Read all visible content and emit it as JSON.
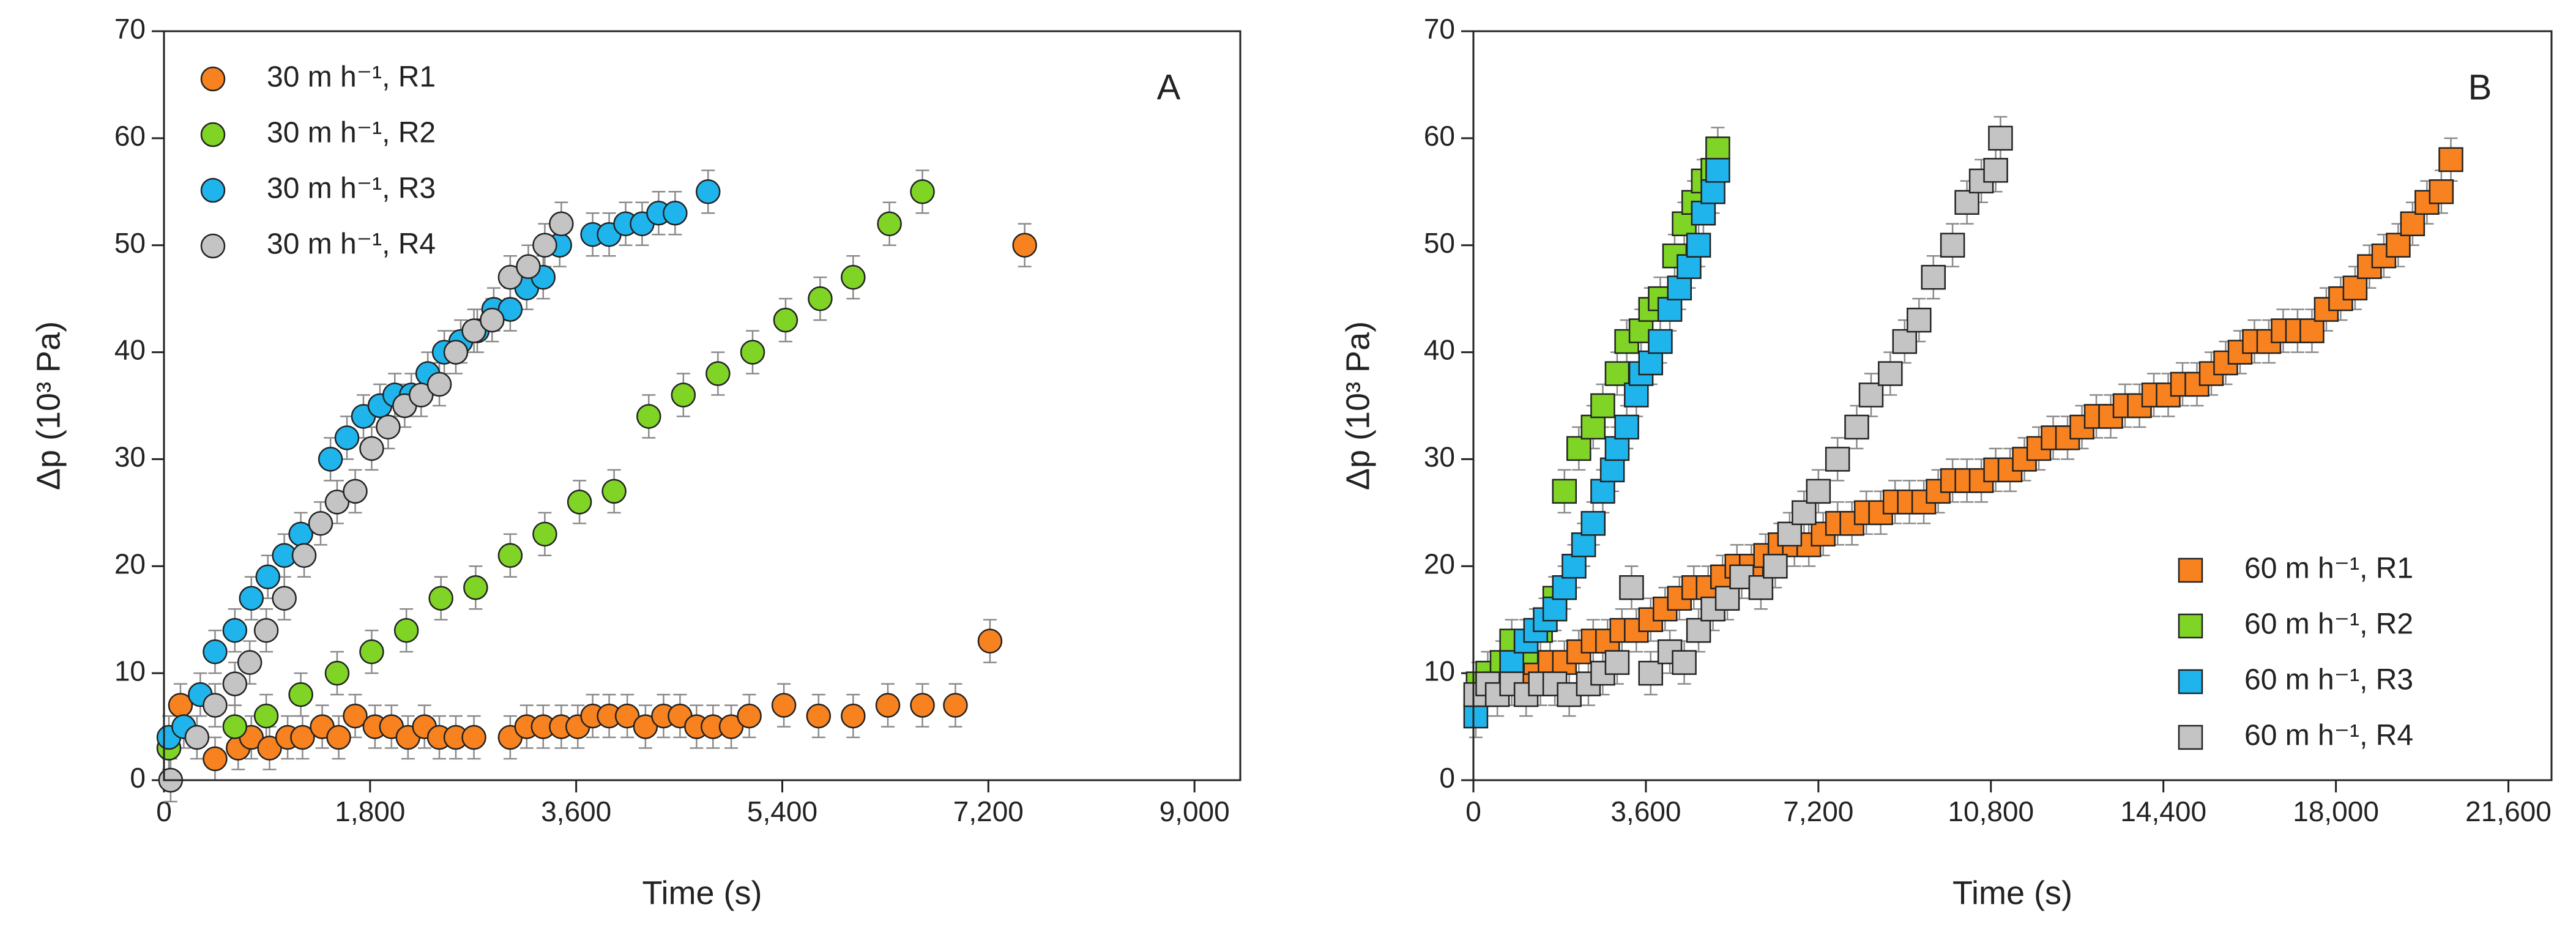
{
  "chart_data": [
    {
      "type": "scatter",
      "marker": "circle",
      "annotation": "A",
      "legend": "upper left",
      "xlabel": "Time (s)",
      "ylabel": "Δp  (10³ Pa)",
      "xlim": [
        0,
        9400
      ],
      "ylim": [
        0,
        70
      ],
      "xticks": [
        0,
        {
          "value": 1800,
          "label": "1,800"
        },
        {
          "value": 3600,
          "label": "3,600"
        },
        {
          "value": 5400,
          "label": "5,400"
        },
        {
          "value": 7200,
          "label": "7,200"
        },
        {
          "value": 9000,
          "label": "9,000"
        }
      ],
      "yticks": [
        0,
        10,
        20,
        30,
        40,
        50,
        60,
        70
      ],
      "series": [
        {
          "name": "30 m h⁻¹, R1",
          "color": "#f7821f",
          "error": 2,
          "x": [
            43,
            144,
            446,
            648,
            763,
            922,
            1080,
            1210,
            1382,
            1526,
            1670,
            1843,
            1987,
            2131,
            2275,
            2405,
            2549,
            2707,
            3024,
            3168,
            3312,
            3470,
            3614,
            3744,
            3888,
            4046,
            4205,
            4363,
            4507,
            4651,
            4795,
            4954,
            5112,
            5414,
            5717,
            6019,
            6322,
            6624,
            6912,
            7214,
            7517
          ],
          "values": [
            3,
            7,
            2,
            3,
            4,
            3,
            4,
            4,
            5,
            4,
            6,
            5,
            5,
            4,
            5,
            4,
            4,
            4,
            4,
            5,
            5,
            5,
            5,
            6,
            6,
            6,
            5,
            6,
            6,
            5,
            5,
            5,
            6,
            7,
            6,
            6,
            7,
            7,
            7,
            13,
            50
          ]
        },
        {
          "name": "30 m h⁻¹, R2",
          "color": "#7fd425",
          "error": 2,
          "x": [
            43,
            619,
            893,
            1195,
            1512,
            1814,
            2117,
            2419,
            2722,
            3024,
            3326,
            3629,
            3931,
            4234,
            4536,
            4838,
            5141,
            5429,
            5731,
            6019,
            6336,
            6624
          ],
          "values": [
            3,
            5,
            6,
            8,
            10,
            12,
            14,
            17,
            18,
            21,
            23,
            26,
            27,
            34,
            36,
            38,
            40,
            43,
            45,
            47,
            52,
            55
          ]
        },
        {
          "name": "30 m h⁻¹, R3",
          "color": "#1fb5ec",
          "error": 2,
          "x": [
            43,
            173,
            317,
            446,
            619,
            763,
            907,
            1051,
            1195,
            1454,
            1598,
            1742,
            1886,
            2016,
            2160,
            2304,
            2448,
            2592,
            2736,
            2880,
            3024,
            3168,
            3312,
            3456,
            3744,
            3888,
            4032,
            4176,
            4320,
            4464,
            4752
          ],
          "values": [
            4,
            5,
            8,
            12,
            14,
            17,
            19,
            21,
            23,
            30,
            32,
            34,
            35,
            36,
            36,
            38,
            40,
            41,
            42,
            44,
            44,
            46,
            47,
            50,
            51,
            51,
            52,
            52,
            53,
            53,
            55
          ]
        },
        {
          "name": "30 m h⁻¹, R4",
          "color": "#c4c4c4",
          "error": 2,
          "x": [
            58,
            288,
            446,
            619,
            749,
            893,
            1051,
            1224,
            1368,
            1512,
            1670,
            1814,
            1958,
            2102,
            2246,
            2405,
            2549,
            2707,
            2866,
            3024,
            3182,
            3326,
            3470
          ],
          "values": [
            0,
            4,
            7,
            9,
            11,
            14,
            17,
            21,
            24,
            26,
            27,
            31,
            33,
            35,
            36,
            37,
            40,
            42,
            43,
            47,
            48,
            50,
            52
          ]
        }
      ]
    },
    {
      "type": "scatter",
      "marker": "square",
      "annotation": "B",
      "legend": "lower right",
      "xlabel": "Time (s)",
      "ylabel": "Δp  (10³ Pa)",
      "xlim": [
        0,
        22500
      ],
      "ylim": [
        0,
        70
      ],
      "xticks": [
        0,
        {
          "value": 3600,
          "label": "3,600"
        },
        {
          "value": 7200,
          "label": "7,200"
        },
        {
          "value": 10800,
          "label": "10,800"
        },
        {
          "value": 14400,
          "label": "14,400"
        },
        {
          "value": 18000,
          "label": "18,000"
        },
        {
          "value": 21600,
          "label": "21,600"
        }
      ],
      "yticks": [
        0,
        10,
        20,
        30,
        40,
        50,
        60,
        70
      ],
      "series": [
        {
          "name": "60 m h⁻¹, R1",
          "color": "#f7821f",
          "error": 2,
          "x": [
            100,
            400,
            700,
            1000,
            1300,
            1600,
            1900,
            2200,
            2500,
            2800,
            3100,
            3400,
            3700,
            4000,
            4300,
            4600,
            4900,
            5200,
            5500,
            5800,
            6100,
            6400,
            6700,
            7000,
            7300,
            7600,
            7900,
            8200,
            8500,
            8800,
            9100,
            9400,
            9700,
            10000,
            10300,
            10600,
            10900,
            11200,
            11500,
            11800,
            12100,
            12400,
            12700,
            13000,
            13300,
            13600,
            13900,
            14200,
            14500,
            14800,
            15100,
            15400,
            15700,
            16000,
            16300,
            16600,
            16900,
            17200,
            17500,
            17800,
            18100,
            18400,
            18700,
            19000,
            19300,
            19600,
            19900,
            20200,
            20400
          ],
          "values": [
            8,
            9,
            10,
            10,
            11,
            11,
            11,
            12,
            13,
            13,
            14,
            14,
            15,
            16,
            17,
            18,
            18,
            19,
            20,
            20,
            21,
            22,
            22,
            22,
            23,
            24,
            24,
            25,
            25,
            26,
            26,
            26,
            27,
            28,
            28,
            28,
            29,
            29,
            30,
            31,
            32,
            32,
            33,
            34,
            34,
            35,
            35,
            36,
            36,
            37,
            37,
            38,
            39,
            40,
            41,
            41,
            42,
            42,
            42,
            44,
            45,
            46,
            48,
            49,
            50,
            52,
            54,
            55,
            58
          ]
        },
        {
          "name": "60 m h⁻¹, R2",
          "color": "#7fd425",
          "error": 2,
          "x": [
            100,
            300,
            600,
            800,
            1100,
            1400,
            1700,
            1900,
            2200,
            2500,
            2700,
            3000,
            3200,
            3500,
            3700,
            3900,
            4200,
            4400,
            4600,
            4800,
            5000,
            5100
          ],
          "values": [
            9,
            10,
            11,
            13,
            12,
            14,
            17,
            27,
            31,
            33,
            35,
            38,
            41,
            42,
            44,
            45,
            49,
            52,
            54,
            56,
            57,
            59
          ]
        },
        {
          "name": "60 m h⁻¹, R3",
          "color": "#1fb5ec",
          "error": 2,
          "x": [
            50,
            250,
            500,
            800,
            1100,
            1300,
            1500,
            1700,
            1900,
            2100,
            2300,
            2500,
            2700,
            2900,
            3000,
            3200,
            3400,
            3500,
            3700,
            3900,
            4100,
            4300,
            4500,
            4700,
            4800,
            5000,
            5100
          ],
          "values": [
            6,
            8,
            9,
            11,
            13,
            14,
            15,
            16,
            18,
            20,
            22,
            24,
            27,
            29,
            31,
            33,
            36,
            38,
            39,
            41,
            44,
            46,
            48,
            50,
            53,
            55,
            57
          ]
        },
        {
          "name": "60 m h⁻¹, R4",
          "color": "#c4c4c4",
          "error": 2,
          "x": [
            50,
            300,
            500,
            800,
            1100,
            1400,
            1700,
            2000,
            2400,
            2700,
            3000,
            3300,
            3700,
            4100,
            4400,
            4700,
            5000,
            5300,
            5600,
            6000,
            6300,
            6600,
            6900,
            7200,
            7600,
            8000,
            8300,
            8700,
            9000,
            9300,
            9600,
            10000,
            10300,
            10600,
            10900,
            11000
          ],
          "values": [
            8,
            9,
            8,
            9,
            8,
            9,
            9,
            8,
            9,
            10,
            11,
            18,
            10,
            12,
            11,
            14,
            16,
            17,
            19,
            18,
            20,
            23,
            25,
            27,
            30,
            33,
            36,
            38,
            41,
            43,
            47,
            50,
            54,
            56,
            57,
            60
          ]
        }
      ]
    }
  ]
}
